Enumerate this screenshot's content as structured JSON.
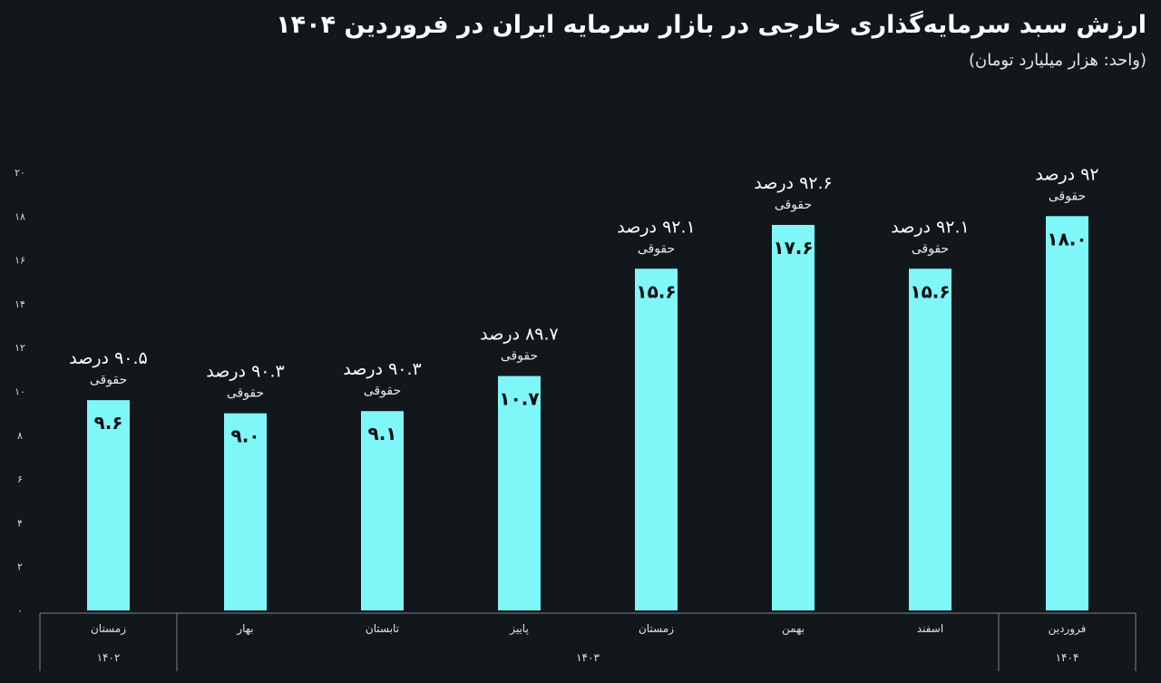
{
  "header": {
    "title": "ارزش سبد سرمایه‌گذاری خارجی در بازار سرمایه ایران در فروردین ۱۴۰۴",
    "subtitle": "(واحد: هزار میلیارد تومان)"
  },
  "chart_data": {
    "type": "bar",
    "title": "ارزش سبد سرمایه‌گذاری خارجی در بازار سرمایه ایران در فروردین ۱۴۰۴",
    "unit": "(واحد: هزار میلیارد تومان)",
    "ylim": [
      0,
      20
    ],
    "yticks": [
      0,
      2,
      4,
      6,
      8,
      10,
      12,
      14,
      16,
      18,
      20
    ],
    "ytick_labels": [
      "۰",
      "۲",
      "۴",
      "۶",
      "۸",
      "۱۰",
      "۱۲",
      "۱۴",
      "۱۶",
      "۱۸",
      "۲۰"
    ],
    "categories": [
      "زمستان",
      "بهار",
      "تابستان",
      "پاییز",
      "زمستان",
      "بهمن",
      "اسفند",
      "فروردین"
    ],
    "values": [
      9.6,
      9.0,
      9.1,
      10.7,
      15.6,
      17.6,
      15.6,
      18.0
    ],
    "value_labels": [
      "۹.۶",
      "۹.۰",
      "۹.۱",
      "۱۰.۷",
      "۱۵.۶",
      "۱۷.۶",
      "۱۵.۶",
      "۱۸.۰"
    ],
    "share_labels": [
      "۹۰.۵ درصد",
      "۹۰.۳ درصد",
      "۹۰.۳ درصد",
      "۸۹.۷ درصد",
      "۹۲.۱ درصد",
      "۹۲.۶ درصد",
      "۹۲.۱ درصد",
      "۹۲ درصد"
    ],
    "share_note": "حقوقی",
    "groups": [
      {
        "label": "۱۴۰۲",
        "count": 1
      },
      {
        "label": "۱۴۰۳",
        "count": 6
      },
      {
        "label": "۱۴۰۴",
        "count": 1
      }
    ],
    "bar_color": "#7ff7f9",
    "grid": false
  }
}
